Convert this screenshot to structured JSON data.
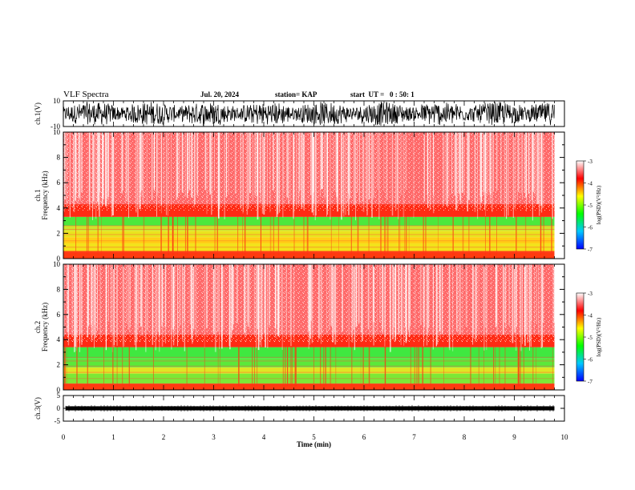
{
  "header": {
    "title": "VLF Spectra",
    "date": "Jul. 20, 2024",
    "station": "station= KAP",
    "start": "start  UT =   0 : 50: 1"
  },
  "chart_data": [
    {
      "type": "line",
      "panel": "waveform-ch1",
      "ylabel": "ch.1(V)",
      "yticks": [
        "10",
        "-10"
      ],
      "ylim": [
        -10,
        10
      ],
      "xlim": [
        0,
        10
      ],
      "color": "#000000"
    },
    {
      "type": "heatmap",
      "panel": "spectrogram-ch1",
      "ylabel": "ch.1",
      "ylabel2": "Frequency (kHz)",
      "yticks": [
        "0",
        "2",
        "4",
        "6",
        "8",
        "10"
      ],
      "ylim": [
        0,
        10
      ],
      "xlim": [
        0,
        9.8
      ],
      "bands": [
        {
          "from": 0.0,
          "to": 0.6,
          "color": "#ff3a10"
        },
        {
          "from": 0.6,
          "to": 1.2,
          "color": "#f2e21a"
        },
        {
          "from": 1.2,
          "to": 1.7,
          "color": "#ffcf16"
        },
        {
          "from": 1.7,
          "to": 2.2,
          "color": "#e9e41e"
        },
        {
          "from": 2.2,
          "to": 2.6,
          "color": "#cfe32a"
        },
        {
          "from": 2.6,
          "to": 3.3,
          "color": "#4ce83c"
        },
        {
          "from": 3.3,
          "to": 4.3,
          "color": "#ff2a14"
        },
        {
          "from": 4.3,
          "to": 10.0,
          "color": "#ff6a6a"
        }
      ]
    },
    {
      "type": "heatmap",
      "panel": "spectrogram-ch2",
      "ylabel": "ch.2",
      "ylabel2": "Frequency (kHz)",
      "yticks": [
        "0",
        "2",
        "4",
        "6",
        "8",
        "10"
      ],
      "ylim": [
        0,
        10
      ],
      "xlim": [
        0,
        9.8
      ],
      "bands": [
        {
          "from": 0.0,
          "to": 0.5,
          "color": "#ff3a10"
        },
        {
          "from": 0.5,
          "to": 1.3,
          "color": "#7ce836"
        },
        {
          "from": 1.3,
          "to": 1.8,
          "color": "#dfe624"
        },
        {
          "from": 1.8,
          "to": 2.5,
          "color": "#5ce83a"
        },
        {
          "from": 2.5,
          "to": 3.4,
          "color": "#3fe840"
        },
        {
          "from": 3.4,
          "to": 4.4,
          "color": "#ff2a14"
        },
        {
          "from": 4.4,
          "to": 10.0,
          "color": "#ff6a6a"
        }
      ]
    },
    {
      "type": "line",
      "panel": "waveform-ch3",
      "ylabel": "ch.3(V)",
      "yticks": [
        "5",
        "0",
        "-5"
      ],
      "ylim": [
        -5,
        5
      ],
      "xlim": [
        0,
        10
      ],
      "color": "#000000"
    }
  ],
  "xaxis": {
    "label": "Time (min)",
    "ticks": [
      "0",
      "1",
      "2",
      "3",
      "4",
      "5",
      "6",
      "7",
      "8",
      "9",
      "10"
    ],
    "xlim": [
      0,
      10
    ]
  },
  "colorbar": {
    "label": "log(PSD)(V²/Hz)",
    "ticks": [
      "-3",
      "-4",
      "-5",
      "-6",
      "-7"
    ],
    "range": [
      -7,
      -3
    ],
    "stops": [
      "#0000ff",
      "#00c8ff",
      "#00ff00",
      "#ffff00",
      "#ff0000",
      "#ffffff"
    ]
  }
}
